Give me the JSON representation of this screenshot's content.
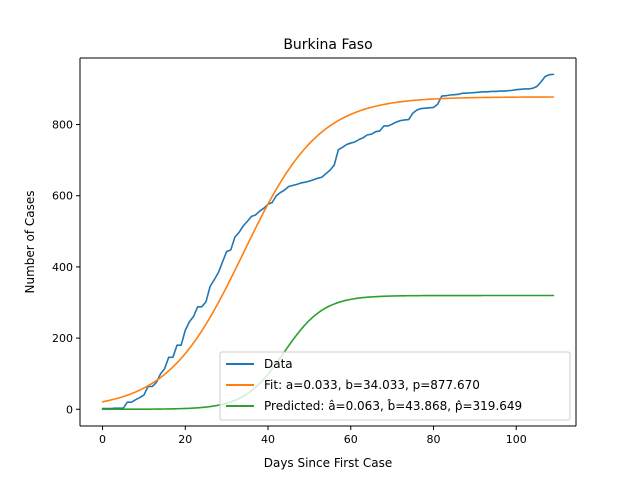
{
  "chart_data": {
    "type": "line",
    "title": "Burkina Faso",
    "xlabel": "Days Since First Case",
    "ylabel": "Number of Cases",
    "xlim": [
      -5.45,
      114.45
    ],
    "ylim": [
      -47,
      987
    ],
    "xticks": [
      0,
      20,
      40,
      60,
      80,
      100
    ],
    "yticks": [
      0,
      200,
      400,
      600,
      800
    ],
    "grid": false,
    "legend_position": "lower-right",
    "series": [
      {
        "name": "Data",
        "color": "#1f77b4",
        "x": [
          0,
          1,
          2,
          3,
          4,
          5,
          6,
          7,
          8,
          9,
          10,
          11,
          12,
          13,
          14,
          15,
          16,
          17,
          18,
          19,
          20,
          21,
          22,
          23,
          24,
          25,
          26,
          27,
          28,
          29,
          30,
          31,
          32,
          33,
          34,
          35,
          36,
          37,
          38,
          39,
          40,
          41,
          42,
          43,
          44,
          45,
          46,
          47,
          48,
          49,
          50,
          51,
          52,
          53,
          54,
          55,
          56,
          57,
          58,
          59,
          60,
          61,
          62,
          63,
          64,
          65,
          66,
          67,
          68,
          69,
          70,
          71,
          72,
          73,
          74,
          75,
          76,
          77,
          78,
          79,
          80,
          81,
          82,
          83,
          84,
          85,
          86,
          87,
          88,
          89,
          90,
          91,
          92,
          93,
          94,
          95,
          96,
          97,
          98,
          99,
          100,
          101,
          102,
          103,
          104,
          105,
          106,
          107,
          108,
          109
        ],
        "y": [
          2,
          2,
          2,
          3,
          3,
          3,
          20,
          20,
          27,
          33,
          40,
          64,
          64,
          75,
          99,
          114,
          146,
          146,
          180,
          180,
          222,
          246,
          261,
          288,
          288,
          302,
          345,
          364,
          384,
          414,
          443,
          448,
          484,
          497,
          515,
          528,
          542,
          546,
          557,
          565,
          576,
          581,
          600,
          609,
          616,
          626,
          629,
          632,
          636,
          638,
          641,
          645,
          649,
          652,
          662,
          672,
          686,
          729,
          736,
          744,
          748,
          751,
          758,
          763,
          771,
          773,
          780,
          782,
          796,
          796,
          801,
          807,
          811,
          813,
          814,
          832,
          841,
          845,
          846,
          847,
          848,
          857,
          880,
          881,
          883,
          884,
          885,
          888,
          888,
          889,
          890,
          891,
          892,
          892,
          893,
          893,
          894,
          894,
          895,
          896,
          898,
          899,
          900,
          900,
          902,
          907,
          920,
          935,
          940,
          941
        ]
      },
      {
        "name": "Fit: a=0.033, b=34.033, p=877.670",
        "color": "#ff7f0e",
        "a": 0.033,
        "b": 34.033,
        "p": 877.67,
        "x_range": [
          0,
          109
        ]
      },
      {
        "name": "Predicted: â=0.063, b̂=43.868, p̂=319.649",
        "color": "#2ca02c",
        "a": 0.063,
        "b": 43.868,
        "p": 319.649,
        "x_range": [
          0,
          109
        ]
      }
    ]
  }
}
